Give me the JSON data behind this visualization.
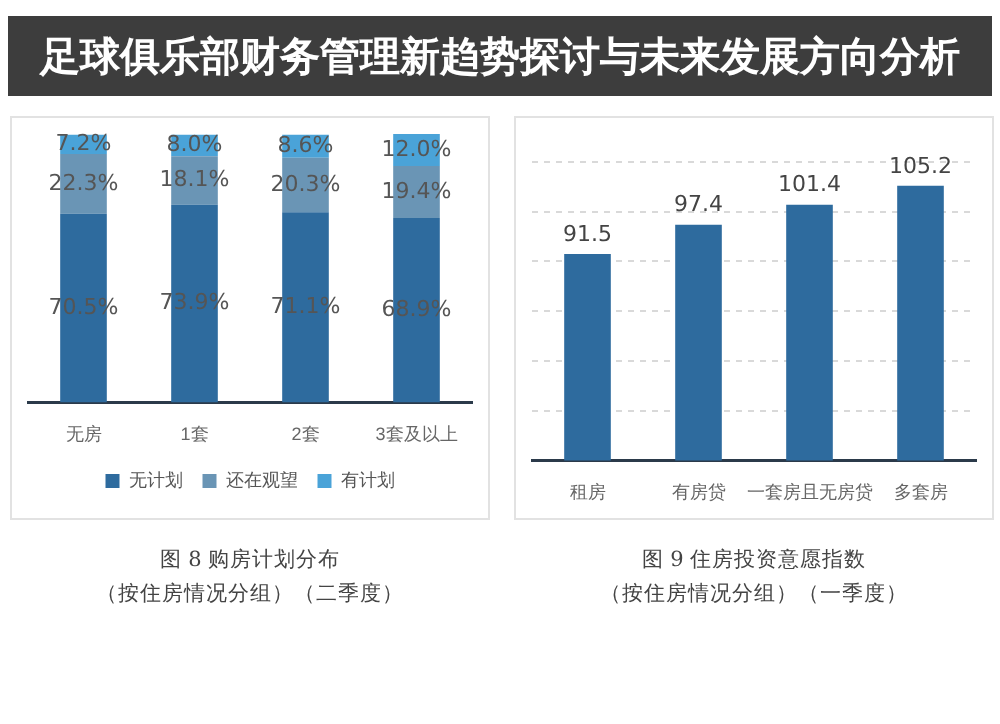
{
  "chart_data": [
    {
      "type": "bar",
      "title": "图 8 购房计划分布",
      "subtitle": "（按住房情况分组）（二季度）",
      "annotations": [
        "足球俱乐部财务管理新趋势探讨与未来发展方向分析"
      ],
      "categories": [
        "无房",
        "1套",
        "2套",
        "3套及以上"
      ],
      "stacked": true,
      "legend": "bottom",
      "tick_labels": "x",
      "series": [
        {
          "name": "无计划",
          "color": "#2e6b9e",
          "values": [
            70.5,
            73.9,
            71.1,
            68.9
          ],
          "value_labels": [
            "70.5%",
            "73.9%",
            "71.1%",
            "68.9%"
          ]
        },
        {
          "name": "还在观望",
          "color": "#6a95b5",
          "values": [
            22.3,
            18.1,
            20.3,
            19.4
          ],
          "value_labels": [
            "22.3%",
            "18.1%",
            "20.3%",
            "19.4%"
          ]
        },
        {
          "name": "有计划",
          "color": "#4aa3d8",
          "values": [
            7.2,
            8.0,
            8.6,
            12.0
          ],
          "value_labels": [
            "7.2%",
            "8.0%",
            "8.6%",
            "12.0%"
          ]
        }
      ]
    },
    {
      "type": "bar",
      "title": "图 9 住房投资意愿指数",
      "subtitle": "（按住房情况分组）（一季度）",
      "categories": [
        "租房",
        "有房贷",
        "一套房且无房贷",
        "多套房"
      ],
      "values": [
        91.5,
        97.4,
        101.4,
        105.2
      ],
      "color": "#2e6b9e",
      "data_labels": true,
      "ylim": [
        50,
        110
      ],
      "yticks": [
        {
          "value": 50,
          "label": null
        },
        {
          "value": 60,
          "label": null
        },
        {
          "value": 70,
          "label": null
        },
        {
          "value": 80,
          "label": null
        },
        {
          "value": 90,
          "label": null
        },
        {
          "value": 100,
          "label": null
        },
        {
          "value": 110,
          "label": null
        }
      ],
      "grid": "y",
      "tick_labels": "x"
    }
  ]
}
